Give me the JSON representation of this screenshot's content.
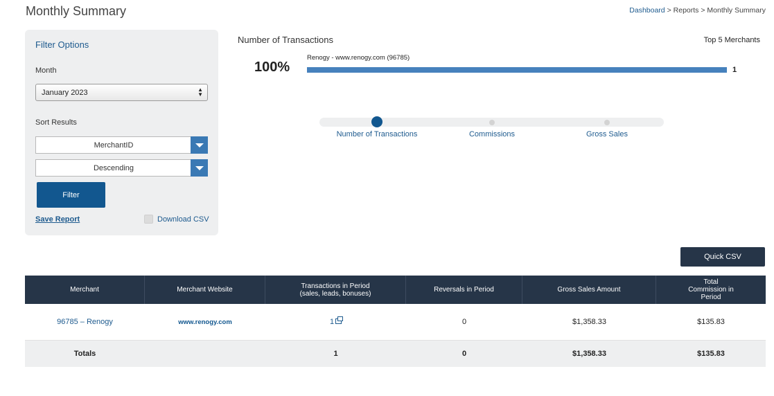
{
  "page": {
    "title": "Monthly Summary"
  },
  "breadcrumb": {
    "dashboard": "Dashboard",
    "reports": "Reports",
    "current": "Monthly Summary",
    "sep": ">"
  },
  "filter": {
    "title": "Filter Options",
    "month_label": "Month",
    "month_value": "January 2023",
    "sort_label": "Sort Results",
    "sort_by": "MerchantID",
    "sort_order": "Descending",
    "filter_button": "Filter",
    "save_report": "Save Report",
    "download_csv": "Download CSV"
  },
  "chart": {
    "title": "Number of Transactions",
    "top_label": "Top 5 Merchants",
    "percent_label": "100%",
    "slider_options": [
      "Number of Transactions",
      "Commissions",
      "Gross Sales"
    ],
    "active_option": 0,
    "accent_color": "#4681bd"
  },
  "chart_data": {
    "type": "bar",
    "categories": [
      "Renogy - www.renogy.com (96785)"
    ],
    "values": [
      1
    ],
    "title": "Number of Transactions",
    "xlabel": "",
    "ylabel": "",
    "xlim": [
      0,
      1
    ],
    "orientation": "horizontal",
    "grid": false
  },
  "actions": {
    "quick_csv": "Quick CSV"
  },
  "table": {
    "headers": [
      "Merchant",
      "Merchant Website",
      "Transactions in Period (sales, leads, bonuses)",
      "Reversals in Period",
      "Gross Sales Amount",
      "Total Commission in Period"
    ],
    "rows": [
      {
        "merchant": "96785 – Renogy",
        "website": "www.renogy.com",
        "transactions": "1",
        "reversals": "0",
        "gross_sales": "$1,358.33",
        "commission": "$135.83"
      }
    ],
    "totals": {
      "label": "Totals",
      "transactions": "1",
      "reversals": "0",
      "gross_sales": "$1,358.33",
      "commission": "$135.83"
    }
  },
  "colors": {
    "header_bg": "#263548",
    "primary": "#12578f",
    "link": "#1d5a8e"
  }
}
